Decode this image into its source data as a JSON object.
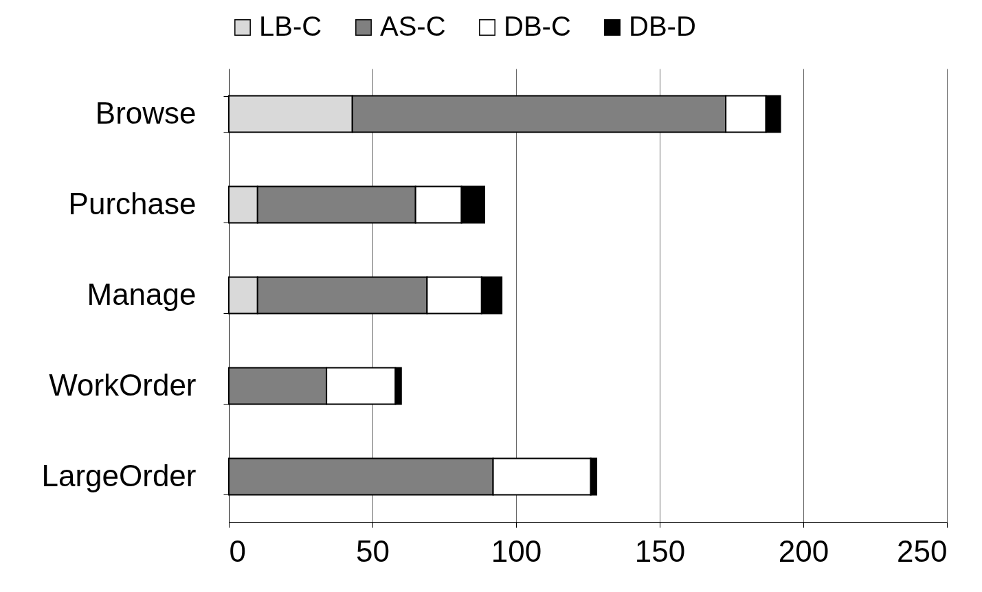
{
  "chart_data": {
    "type": "bar",
    "orientation": "horizontal",
    "stacked": true,
    "categories": [
      "Browse",
      "Purchase",
      "Manage",
      "WorkOrder",
      "LargeOrder"
    ],
    "series": [
      {
        "name": "LB-C",
        "color": "#d9d9d9",
        "values": [
          43,
          10,
          10,
          0,
          0
        ]
      },
      {
        "name": "AS-C",
        "color": "#808080",
        "values": [
          130,
          55,
          59,
          34,
          92
        ]
      },
      {
        "name": "DB-C",
        "color": "#ffffff",
        "values": [
          14,
          16,
          19,
          24,
          34
        ]
      },
      {
        "name": "DB-D",
        "color": "#000000",
        "values": [
          5,
          8,
          7,
          2,
          2
        ]
      }
    ],
    "xlim": [
      0,
      250
    ],
    "xticks": [
      0,
      50,
      100,
      150,
      200,
      250
    ],
    "grid": "x",
    "legend": "top"
  }
}
